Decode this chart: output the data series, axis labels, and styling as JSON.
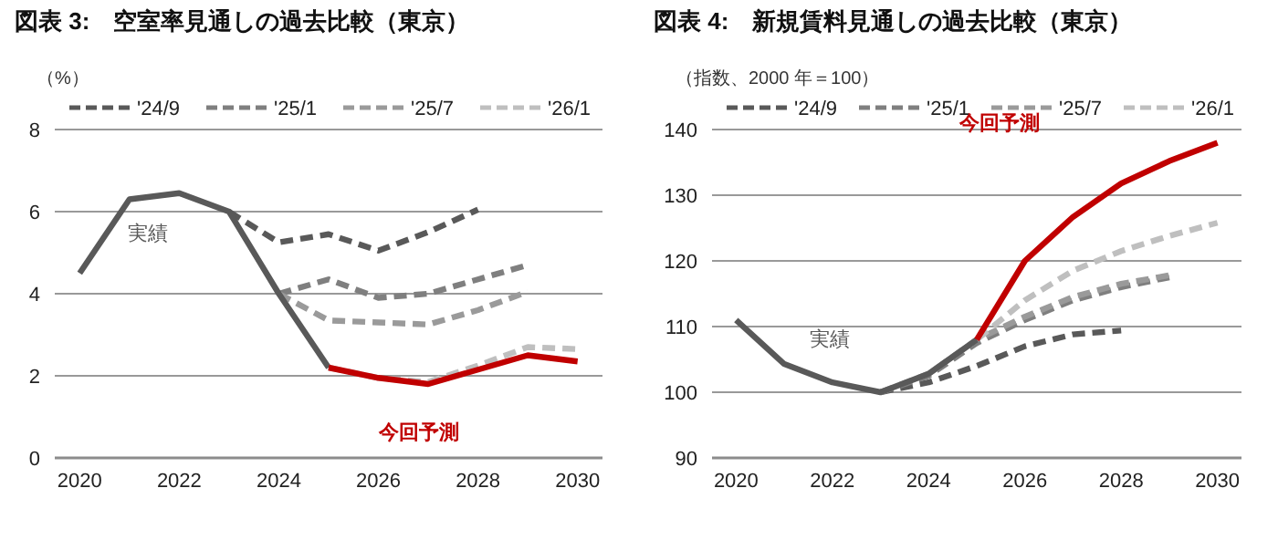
{
  "chart_data": [
    {
      "type": "line",
      "title": "図表 3:　空室率見通しの過去比較（東京）",
      "ylabel": "（%）",
      "xlim": [
        2019.5,
        2030.5
      ],
      "xticks": [
        2020,
        2022,
        2024,
        2026,
        2028,
        2030
      ],
      "ylim": [
        0,
        8
      ],
      "yticks": [
        0,
        2,
        4,
        6,
        8
      ],
      "grid": "y",
      "legend": "top",
      "series": [
        {
          "name": "'24/9",
          "color": "#595959",
          "line_style": "dashed",
          "x": [
            2023,
            2024,
            2025,
            2026,
            2027,
            2028
          ],
          "values": [
            6.0,
            5.25,
            5.45,
            5.05,
            5.5,
            6.05
          ]
        },
        {
          "name": "'25/1",
          "color": "#7f7f7f",
          "line_style": "dashed",
          "x": [
            2024,
            2025,
            2026,
            2027,
            2028,
            2029
          ],
          "values": [
            4.0,
            4.35,
            3.9,
            4.0,
            4.35,
            4.7
          ]
        },
        {
          "name": "'25/7",
          "color": "#9a9a9a",
          "line_style": "dashed",
          "x": [
            2024,
            2025,
            2026,
            2027,
            2028,
            2029
          ],
          "values": [
            4.0,
            3.35,
            3.3,
            3.25,
            3.6,
            4.05
          ]
        },
        {
          "name": "'26/1",
          "color": "#bfbfbf",
          "line_style": "dashed",
          "x": [
            2025,
            2026,
            2027,
            2028,
            2029,
            2030
          ],
          "values": [
            2.2,
            1.95,
            1.85,
            2.25,
            2.7,
            2.65
          ]
        },
        {
          "name": "実績",
          "color": "#595959",
          "x": [
            2020,
            2021,
            2022,
            2023,
            2024,
            2025
          ],
          "values": [
            4.5,
            6.3,
            6.45,
            6.0,
            4.0,
            2.2
          ]
        },
        {
          "name": "今回予測",
          "color": "#c00000",
          "x": [
            2025,
            2026,
            2027,
            2028,
            2029,
            2030
          ],
          "values": [
            2.2,
            1.95,
            1.8,
            2.15,
            2.5,
            2.35
          ]
        }
      ]
    },
    {
      "type": "line",
      "title": "図表 4:　新規賃料見通しの過去比較（東京）",
      "ylabel": "（指数、2000 年＝100）",
      "xlim": [
        2019.5,
        2030.5
      ],
      "xticks": [
        2020,
        2022,
        2024,
        2026,
        2028,
        2030
      ],
      "ylim": [
        90,
        140
      ],
      "yticks": [
        90,
        100,
        110,
        120,
        130,
        140
      ],
      "grid": "y",
      "legend": "top",
      "series": [
        {
          "name": "'24/9",
          "color": "#595959",
          "line_style": "dashed",
          "x": [
            2023,
            2024,
            2025,
            2026,
            2027,
            2028
          ],
          "values": [
            100,
            101.5,
            104,
            107,
            108.8,
            109.4
          ]
        },
        {
          "name": "'25/1",
          "color": "#7f7f7f",
          "line_style": "dashed",
          "x": [
            2023,
            2024,
            2025,
            2026,
            2027,
            2028,
            2029
          ],
          "values": [
            100,
            102.5,
            107.5,
            111,
            114,
            116,
            117.5
          ]
        },
        {
          "name": "'25/7",
          "color": "#9a9a9a",
          "line_style": "dashed",
          "x": [
            2023,
            2024,
            2025,
            2026,
            2027,
            2028,
            2029
          ],
          "values": [
            100,
            102.8,
            108,
            111.5,
            114.5,
            116.5,
            117.8
          ]
        },
        {
          "name": "'26/1",
          "color": "#bfbfbf",
          "line_style": "dashed",
          "x": [
            2024,
            2025,
            2026,
            2027,
            2028,
            2029,
            2030
          ],
          "values": [
            102.8,
            108,
            114,
            118.5,
            121.5,
            123.8,
            125.8
          ]
        },
        {
          "name": "実績",
          "color": "#595959",
          "x": [
            2020,
            2021,
            2022,
            2023,
            2024,
            2025
          ],
          "values": [
            111,
            104.3,
            101.5,
            100,
            102.8,
            108
          ]
        },
        {
          "name": "今回予測",
          "color": "#c00000",
          "x": [
            2025,
            2026,
            2027,
            2028,
            2029,
            2030
          ],
          "values": [
            108,
            120,
            126.7,
            131.8,
            135.2,
            138
          ]
        }
      ]
    }
  ]
}
